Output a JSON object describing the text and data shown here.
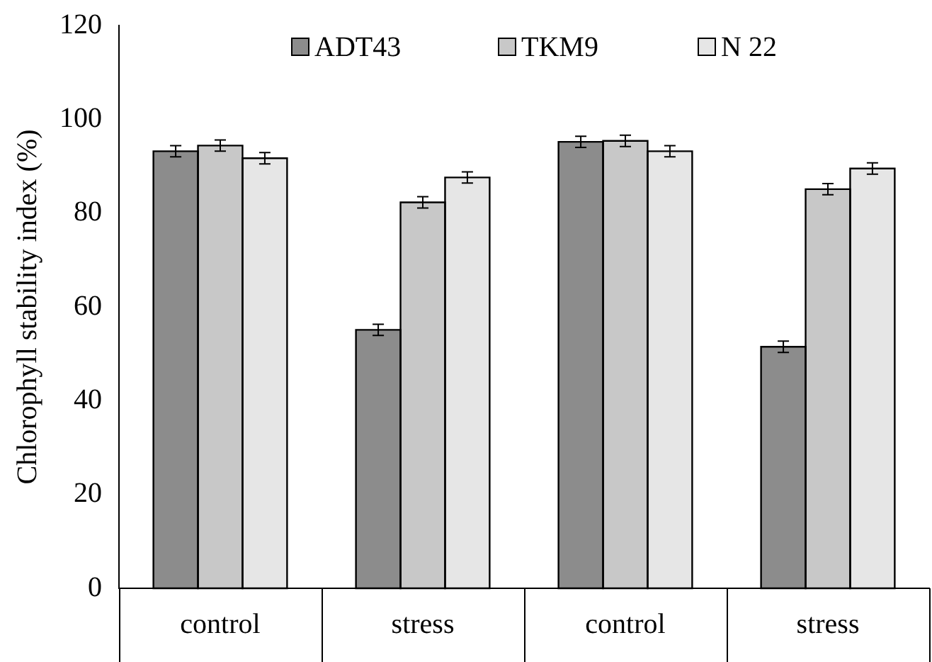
{
  "chart_data": {
    "type": "bar",
    "ylabel": "Chlorophyll stability index (%)",
    "categories": [
      "control",
      "stress",
      "control",
      "stress"
    ],
    "series": [
      {
        "name": "ADT43",
        "color": "#8c8c8c",
        "values": [
          93.2,
          55.1,
          95.2,
          51.5
        ],
        "errors": [
          1.2,
          1.2,
          1.2,
          1.2
        ]
      },
      {
        "name": "TKM9",
        "color": "#c8c8c8",
        "values": [
          94.4,
          82.3,
          95.4,
          85.1
        ],
        "errors": [
          1.2,
          1.2,
          1.2,
          1.2
        ]
      },
      {
        "name": "N 22",
        "color": "#e6e6e6",
        "values": [
          91.7,
          87.6,
          93.2,
          89.5
        ],
        "errors": [
          1.2,
          1.2,
          1.2,
          1.2
        ]
      }
    ],
    "ylim": [
      0,
      120
    ],
    "yticks": [
      0,
      20,
      40,
      60,
      80,
      100,
      120
    ],
    "grid": false,
    "legend": "top"
  }
}
